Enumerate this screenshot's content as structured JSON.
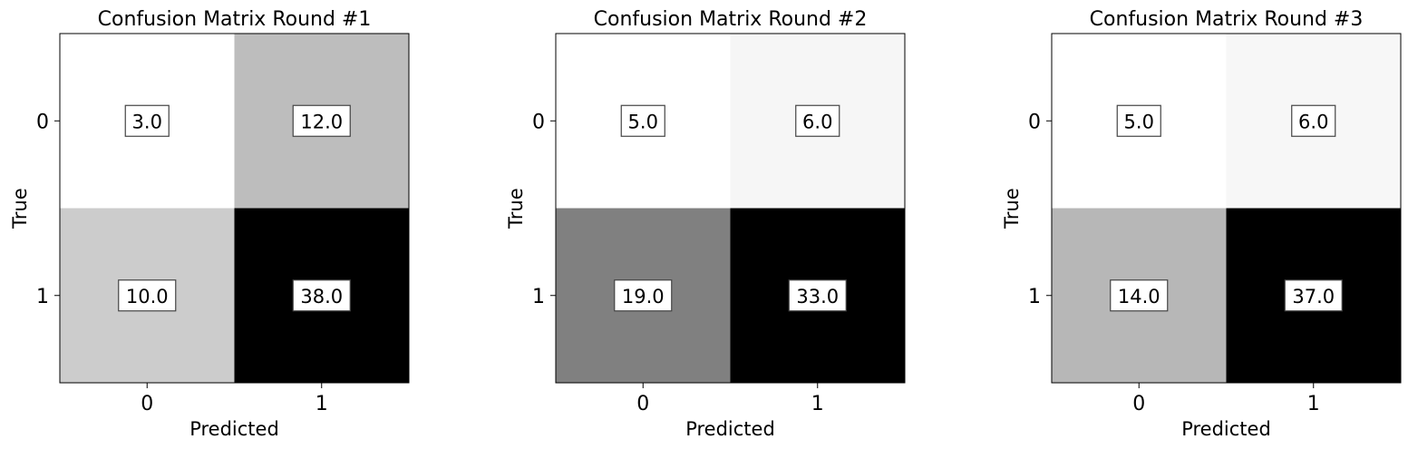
{
  "chart_data": [
    {
      "type": "heatmap",
      "title": "Confusion Matrix Round #1",
      "xlabel": "Predicted",
      "ylabel": "True",
      "x_categories": [
        "0",
        "1"
      ],
      "y_categories": [
        "0",
        "1"
      ],
      "values": [
        [
          3.0,
          12.0
        ],
        [
          10.0,
          38.0
        ]
      ],
      "value_labels": [
        [
          "3.0",
          "12.0"
        ],
        [
          "10.0",
          "38.0"
        ]
      ],
      "colormap": "Greys",
      "grid": false
    },
    {
      "type": "heatmap",
      "title": "Confusion Matrix Round #2",
      "xlabel": "Predicted",
      "ylabel": "True",
      "x_categories": [
        "0",
        "1"
      ],
      "y_categories": [
        "0",
        "1"
      ],
      "values": [
        [
          5.0,
          6.0
        ],
        [
          19.0,
          33.0
        ]
      ],
      "value_labels": [
        [
          "5.0",
          "6.0"
        ],
        [
          "19.0",
          "33.0"
        ]
      ],
      "colormap": "Greys",
      "grid": false
    },
    {
      "type": "heatmap",
      "title": "Confusion Matrix Round #3",
      "xlabel": "Predicted",
      "ylabel": "True",
      "x_categories": [
        "0",
        "1"
      ],
      "y_categories": [
        "0",
        "1"
      ],
      "values": [
        [
          5.0,
          6.0
        ],
        [
          14.0,
          37.0
        ]
      ],
      "value_labels": [
        [
          "5.0",
          "6.0"
        ],
        [
          "14.0",
          "37.0"
        ]
      ],
      "colormap": "Greys",
      "grid": false
    }
  ]
}
